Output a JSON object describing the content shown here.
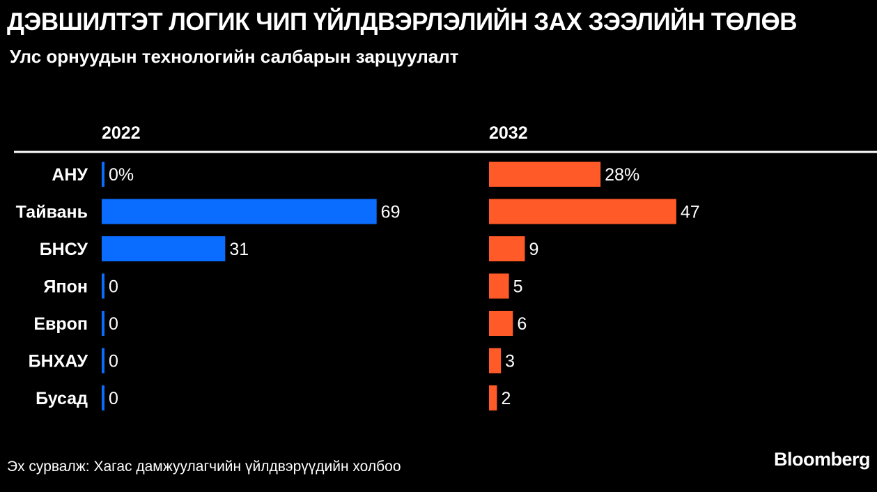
{
  "title": "ДЭВШИЛТЭТ ЛОГИК ЧИП ҮЙЛДВЭРЛЭЛИЙН ЗАХ ЗЭЭЛИЙН ТӨЛӨВ",
  "subtitle": "Улс орнуудын технологийн салбарын зарцуулалт",
  "source": "Эх сурвалж: Хагас дамжуулагчийн үйлдвэрүүдийн холбоо",
  "logo": "Bloomberg",
  "colors": {
    "series_2022": "#0a6dff",
    "series_2032": "#ff5a28",
    "background": "#000000"
  },
  "chart_data": {
    "type": "bar",
    "orientation": "horizontal",
    "categories": [
      "АНУ",
      "Тайвань",
      "БНСУ",
      "Япон",
      "Европ",
      "БНХАУ",
      "Бусад"
    ],
    "series": [
      {
        "name": "2022",
        "values": [
          0,
          69,
          31,
          0,
          0,
          0,
          0
        ],
        "labels": [
          "0%",
          "69",
          "31",
          "0",
          "0",
          "0",
          "0"
        ]
      },
      {
        "name": "2032",
        "values": [
          28,
          47,
          9,
          5,
          6,
          3,
          2
        ],
        "labels": [
          "28%",
          "47",
          "9",
          "5",
          "6",
          "3",
          "2"
        ]
      }
    ]
  }
}
